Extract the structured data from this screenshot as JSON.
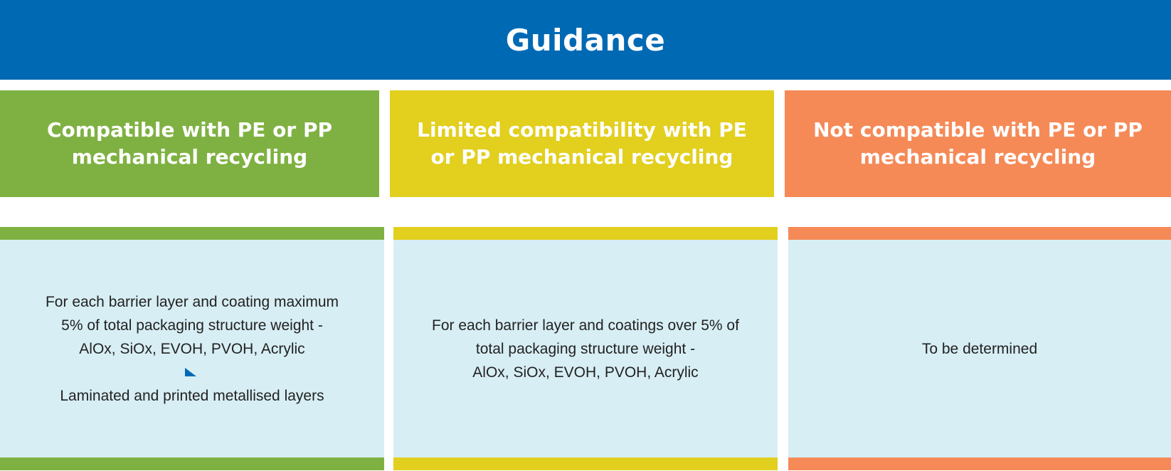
{
  "banner": {
    "title": "Guidance"
  },
  "columns": [
    {
      "heading": "Compatible with PE or PP mechanical recycling",
      "accent_color": "#7fb142",
      "body_lines": [
        "For each barrier layer and coating maximum",
        "5% of total packaging structure weight -",
        "AlOx, SiOx, EVOH, PVOH, Acrylic"
      ],
      "body_after_marker": "Laminated and printed metallised layers",
      "marker_icon": "triangle-marker-icon"
    },
    {
      "heading": "Limited compatibility with PE or PP mechanical recycling",
      "accent_color": "#e2cf1e",
      "body_lines": [
        "For each barrier layer and coatings over 5% of",
        "total packaging structure weight -",
        "AlOx, SiOx, EVOH, PVOH, Acrylic"
      ]
    },
    {
      "heading": "Not compatible with PE or PP mechanical recycling",
      "accent_color": "#f58a57",
      "body_lines": [
        "To be determined"
      ]
    }
  ],
  "colors": {
    "banner": "#0069b4",
    "panel_background": "#d7eef4"
  }
}
